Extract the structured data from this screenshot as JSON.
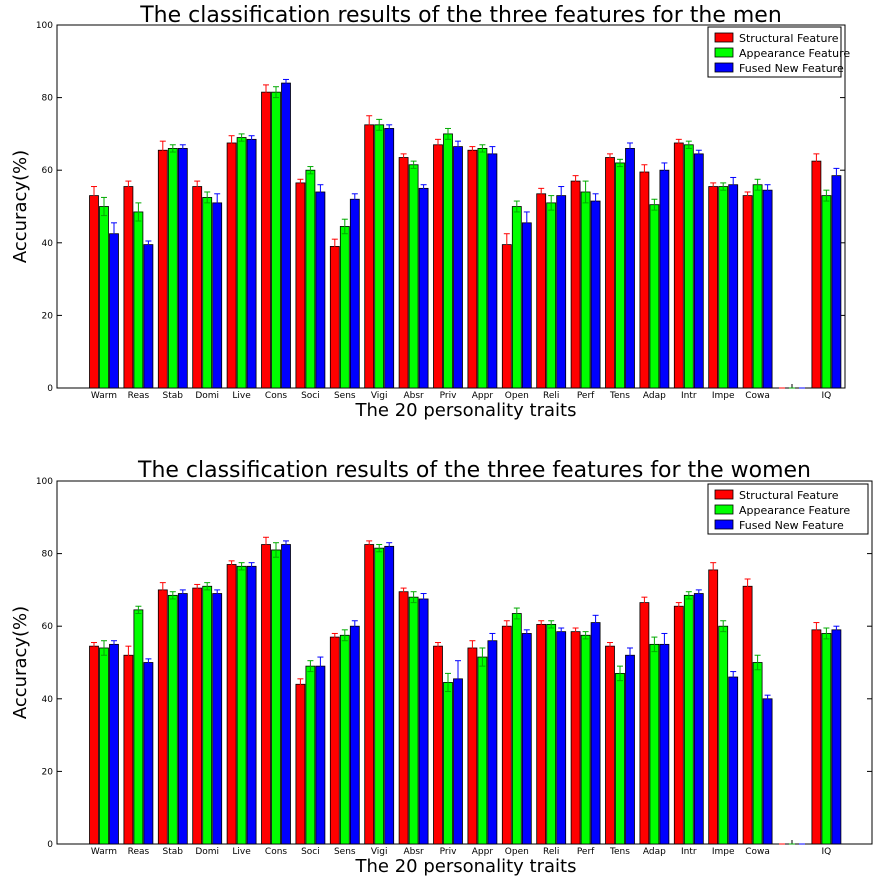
{
  "colors": {
    "structural": "#ff0000",
    "appearance": "#00ff00",
    "fused": "#0000ff",
    "err_structural": "#ff0000",
    "err_appearance": "#00aa00",
    "err_fused": "#0000ff"
  },
  "chart_data": [
    {
      "type": "bar",
      "title": "The classification results of the three features for the men",
      "xlabel": "The 20 personality traits",
      "ylabel": "Accuracy(%)",
      "ylim": [
        0,
        100
      ],
      "yticks": [
        0,
        20,
        40,
        60,
        80,
        100
      ],
      "grid": false,
      "legend_position": "top-right",
      "categories": [
        "Warm",
        "Reas",
        "Stab",
        "Domi",
        "Live",
        "Cons",
        "Soci",
        "Sens",
        "Vigi",
        "Absr",
        "Priv",
        "Appr",
        "Open",
        "Reli",
        "Perf",
        "Tens",
        "Adap",
        "Intr",
        "Impe",
        "Cowa",
        "",
        "IQ"
      ],
      "series": [
        {
          "name": "Structural Feature",
          "color_key": "structural",
          "values": [
            53,
            55.5,
            65.5,
            55.5,
            67.5,
            81.5,
            56.5,
            39,
            72.5,
            63.5,
            67,
            65.5,
            39.5,
            53.5,
            57,
            63.5,
            59.5,
            67.5,
            55.5,
            53,
            0,
            62.5
          ],
          "errors": [
            2.5,
            1.5,
            2.5,
            1.5,
            2,
            2,
            1,
            2,
            2.5,
            1,
            1.5,
            1,
            3,
            1.5,
            1.5,
            1,
            2,
            1,
            1,
            1,
            0,
            2
          ]
        },
        {
          "name": "Appearance Feature",
          "color_key": "appearance",
          "values": [
            50,
            48.5,
            66,
            52.5,
            69,
            81.5,
            60,
            44.5,
            72.5,
            61.5,
            70,
            66,
            50,
            51,
            54,
            62,
            50.5,
            67,
            55.5,
            56,
            0,
            53
          ],
          "errors": [
            2.5,
            2.5,
            1,
            1.5,
            1,
            1.5,
            1,
            2,
            1.5,
            1,
            1.5,
            1,
            1.5,
            2,
            3,
            1,
            1.5,
            1,
            1,
            1.5,
            0,
            1.5
          ]
        },
        {
          "name": "Fused New Feature",
          "color_key": "fused",
          "values": [
            42.5,
            39.5,
            66,
            51,
            68.5,
            84,
            54,
            52,
            71.5,
            55,
            66.5,
            64.5,
            45.5,
            53,
            51.5,
            66,
            60,
            64.5,
            56,
            54.5,
            0,
            58.5
          ],
          "errors": [
            3,
            1,
            1,
            2.5,
            1,
            1,
            2,
            1.5,
            1,
            1,
            1.5,
            2,
            3,
            2.5,
            2,
            1.5,
            2,
            1,
            2,
            1.5,
            0,
            2
          ]
        }
      ]
    },
    {
      "type": "bar",
      "title": "The classification results of the three features for the women",
      "xlabel": "The 20 personality traits",
      "ylabel": "Accuracy(%)",
      "ylim": [
        0,
        100
      ],
      "yticks": [
        0,
        20,
        40,
        60,
        80,
        100
      ],
      "grid": false,
      "legend_position": "top-right",
      "categories": [
        "Warm",
        "Reas",
        "Stab",
        "Domi",
        "Live",
        "Cons",
        "Soci",
        "Sens",
        "Vigi",
        "Absr",
        "Priv",
        "Appr",
        "Open",
        "Reli",
        "Perf",
        "Tens",
        "Adap",
        "Intr",
        "Impe",
        "Cowa",
        "",
        "IQ"
      ],
      "series": [
        {
          "name": "Structural Feature",
          "color_key": "structural",
          "values": [
            54.5,
            52,
            70,
            70.5,
            77,
            82.5,
            44,
            57,
            82.5,
            69.5,
            54.5,
            54,
            60,
            60.5,
            58.5,
            54.5,
            66.5,
            65.5,
            75.5,
            71,
            0,
            59
          ],
          "errors": [
            1,
            2.5,
            2,
            1,
            1,
            2,
            1.5,
            1,
            1,
            1,
            1,
            2,
            1.5,
            1,
            1,
            1,
            1.5,
            1,
            2,
            2,
            0,
            2
          ]
        },
        {
          "name": "Appearance Feature",
          "color_key": "appearance",
          "values": [
            54,
            64.5,
            68.5,
            71,
            76.5,
            81,
            49,
            57.5,
            81.5,
            68,
            44.5,
            51.5,
            63.5,
            60.5,
            57.5,
            47,
            55,
            68.5,
            60,
            50,
            0,
            58
          ],
          "errors": [
            2,
            1,
            1,
            1,
            1,
            2,
            1.5,
            1.5,
            1,
            1.5,
            2.5,
            2.5,
            1.5,
            1,
            1,
            2,
            2,
            1,
            1.5,
            2,
            0,
            1.5
          ]
        },
        {
          "name": "Fused New Feature",
          "color_key": "fused",
          "values": [
            55,
            50,
            69,
            69,
            76.5,
            82.5,
            49,
            60,
            82,
            67.5,
            45.5,
            56,
            58,
            58.5,
            61,
            52,
            55,
            69,
            46,
            40,
            0,
            59
          ],
          "errors": [
            1,
            1,
            1,
            1,
            1,
            1,
            2.5,
            1.5,
            1,
            1.5,
            5,
            2,
            1,
            1,
            2,
            2,
            3,
            1,
            1.5,
            1,
            0,
            1
          ]
        }
      ]
    }
  ]
}
